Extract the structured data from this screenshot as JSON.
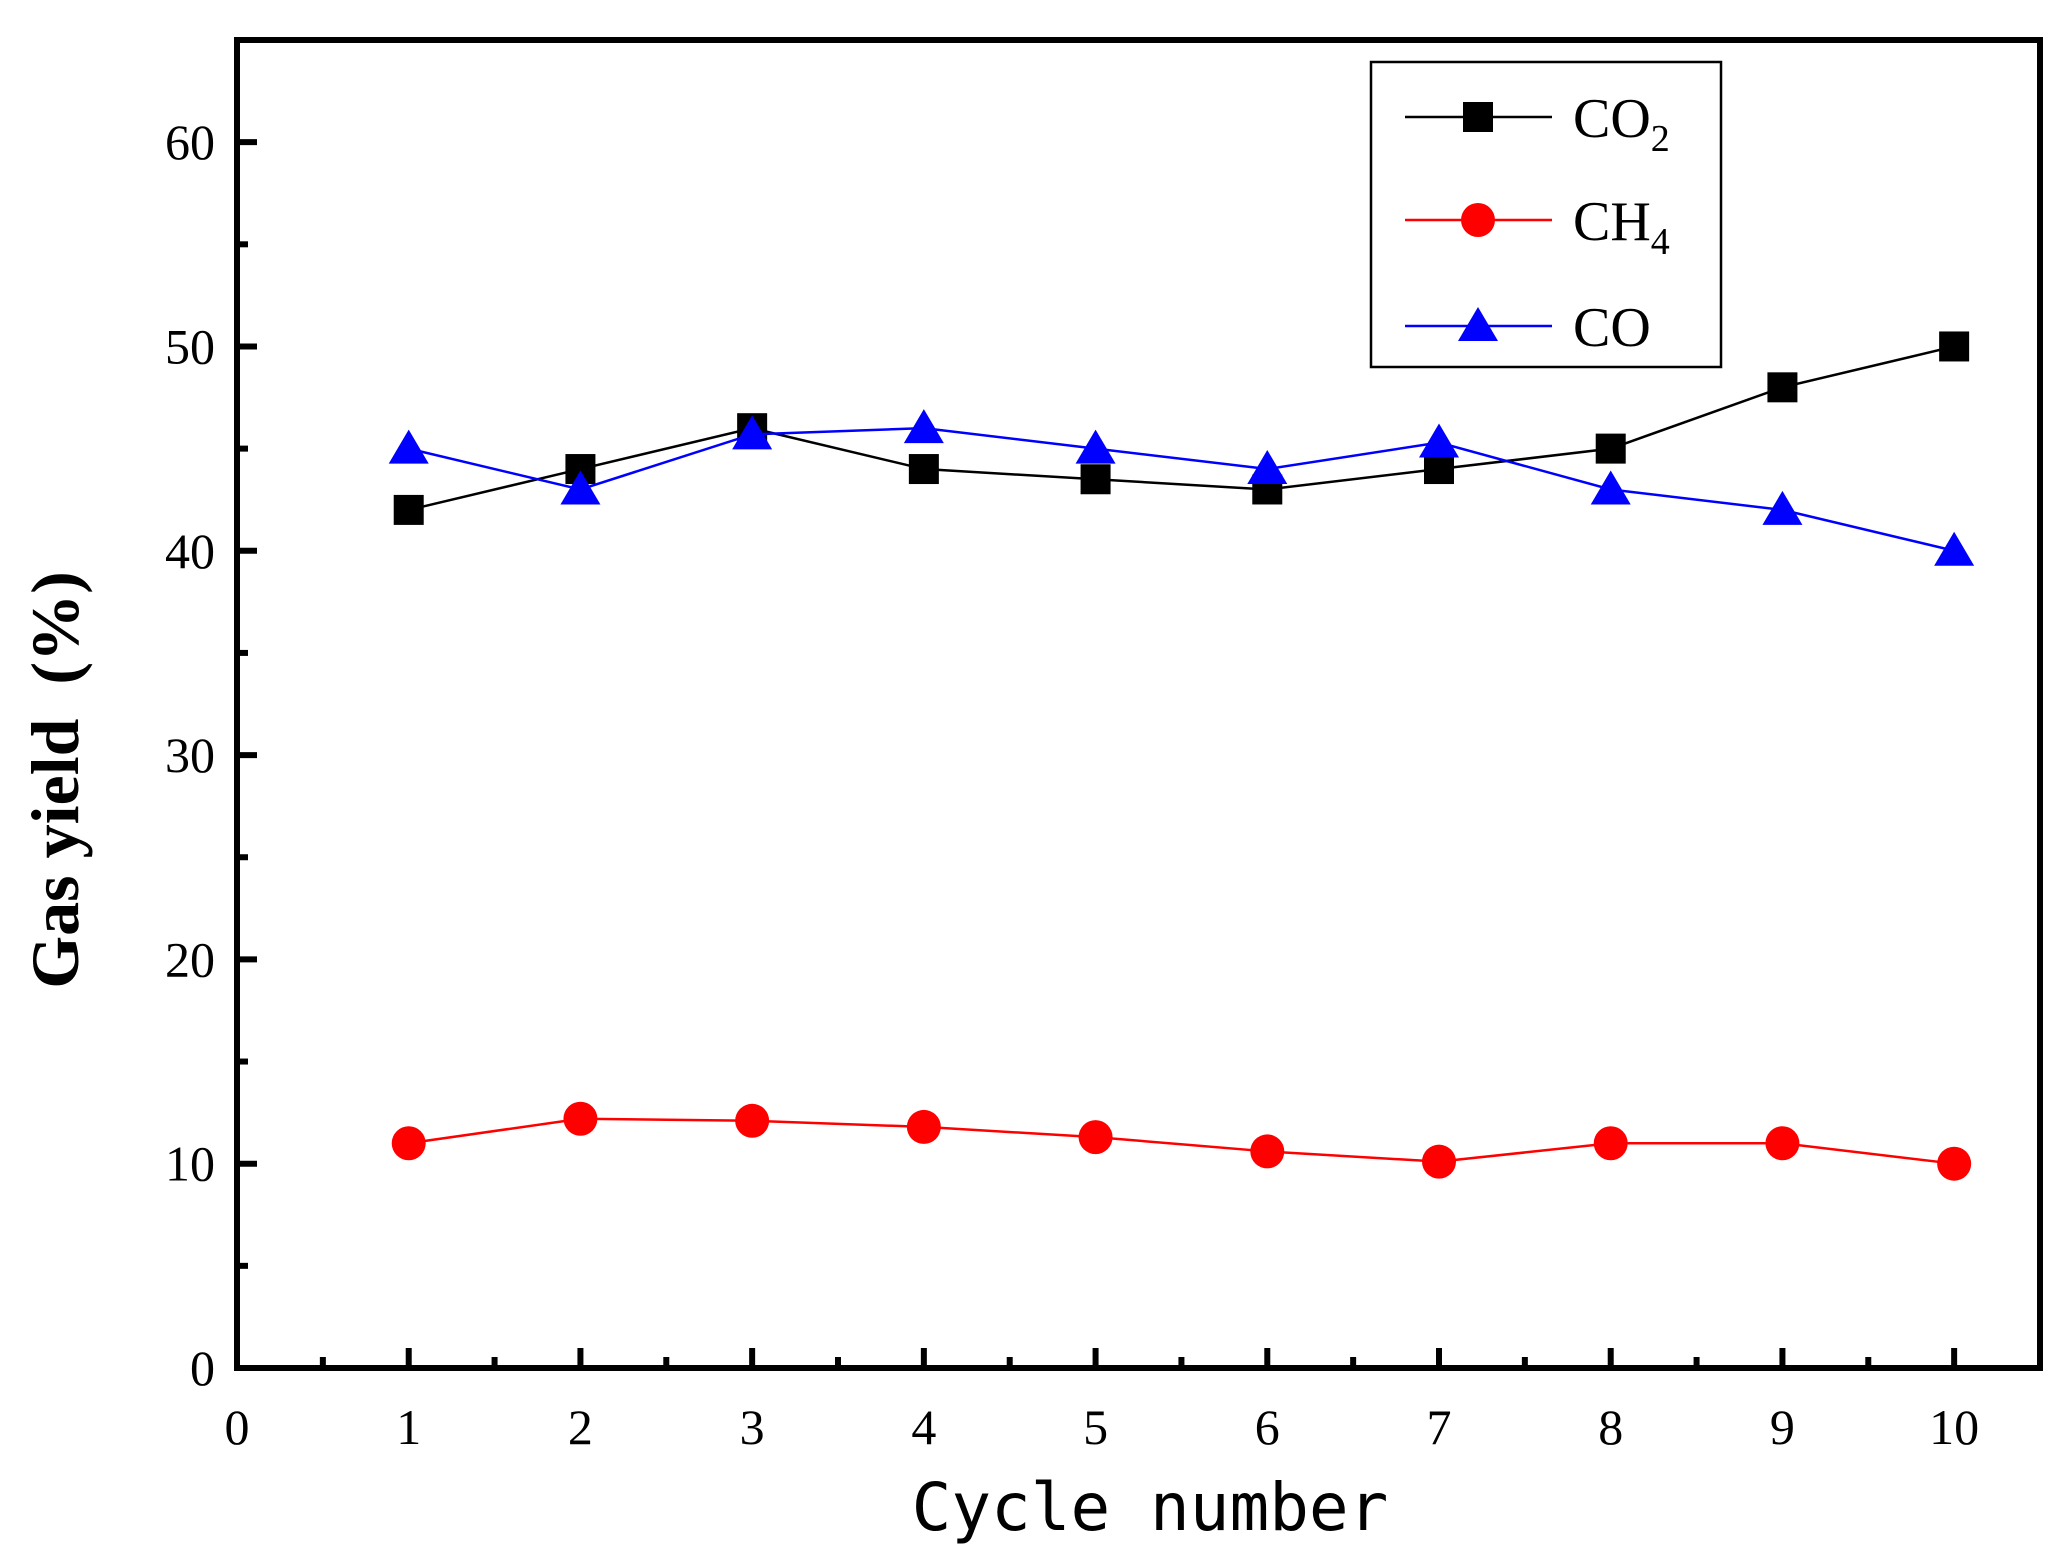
{
  "chart_data": {
    "type": "line",
    "title": "",
    "xlabel": "Cycle number",
    "ylabel": "Gas yield  (%)",
    "xlim": [
      0,
      10.5
    ],
    "ylim": [
      0,
      65
    ],
    "xticks": [
      0,
      1,
      2,
      3,
      4,
      5,
      6,
      7,
      8,
      9,
      10
    ],
    "yticks": [
      0,
      10,
      20,
      30,
      40,
      50,
      60
    ],
    "grid": false,
    "legend_position": "top-right",
    "series": [
      {
        "name": "CO2",
        "label_main": "CO",
        "label_sub": "2",
        "color": "#000000",
        "marker": "square",
        "x": [
          1,
          2,
          3,
          4,
          5,
          6,
          7,
          8,
          9,
          10
        ],
        "values": [
          42,
          44,
          46,
          44,
          43.5,
          43,
          44,
          45,
          48,
          50
        ]
      },
      {
        "name": "CH4",
        "label_main": "CH",
        "label_sub": "4",
        "color": "#ff0000",
        "marker": "circle",
        "x": [
          1,
          2,
          3,
          4,
          5,
          6,
          7,
          8,
          9,
          10
        ],
        "values": [
          11,
          12.2,
          12.1,
          11.8,
          11.3,
          10.6,
          10.1,
          11,
          11,
          10
        ]
      },
      {
        "name": "CO",
        "label_main": "CO",
        "label_sub": "",
        "color": "#0000ff",
        "marker": "triangle",
        "x": [
          1,
          2,
          3,
          4,
          5,
          6,
          7,
          8,
          9,
          10
        ],
        "values": [
          45,
          43,
          45.7,
          46,
          45,
          44,
          45.3,
          43,
          42,
          40
        ]
      }
    ]
  }
}
